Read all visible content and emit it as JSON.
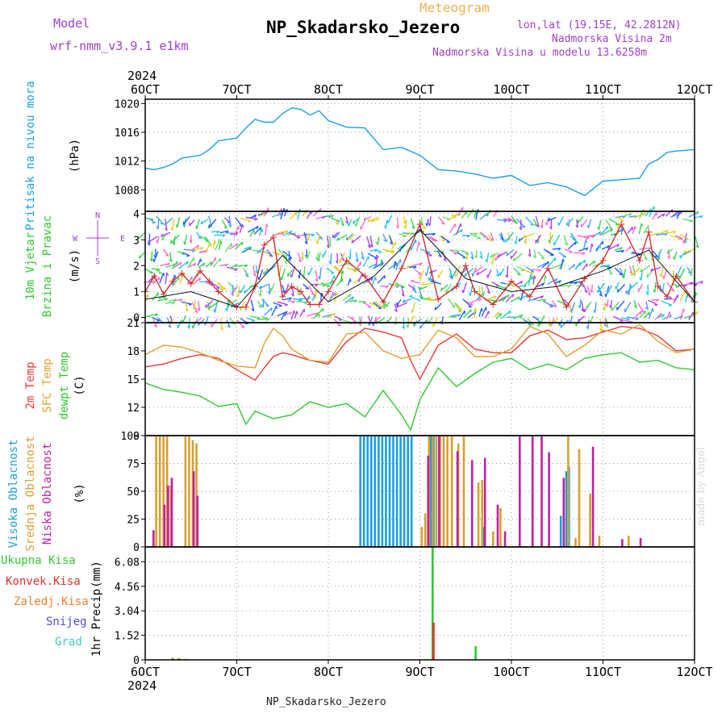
{
  "header": {
    "model_label": "Model",
    "model_name": "wrf-nmm_v3.9.1 e1km",
    "meteogram_label": "Meteogram",
    "station_title": "NP_Skadarsko_Jezero",
    "coords": "lon,lat (19.15E, 42.2812N)",
    "elev_station": "Nadmorska Visina 2m",
    "elev_model": "Nadmorska Visina u modelu 13.6258m"
  },
  "footer": {
    "station_name": "NP_Skadarsko_Jezero",
    "credit": "made by Angel"
  },
  "colors": {
    "pressure": "#1aa0e8",
    "wind_gust": "#d03030",
    "wind_speed": "#111111",
    "temp2m": "#e83a3a",
    "sfc_temp": "#e0a030",
    "dewpoint": "#30c830",
    "cloud_high": "#1a9ee0",
    "cloud_mid": "#d8a030",
    "cloud_low": "#c020a0",
    "precip_total": "#30c830",
    "precip_conv": "#e03030",
    "precip_frozen": "#f08030",
    "precip_snow": "#5050e0",
    "precip_grad": "#40c8c8",
    "label_pressure": "#1aa0e8",
    "label_wind": "#30c830",
    "label_compass": "#a040c8"
  },
  "time_axis": {
    "year_label": "2024",
    "ticks": [
      "6OCT",
      "7OCT",
      "8OCT",
      "9OCT",
      "10OCT",
      "11OCT",
      "12OCT"
    ]
  },
  "chart_data": [
    {
      "type": "line",
      "id": "pressure",
      "ylabel_parts": [
        "Pritisak na nivou mora",
        "(hPa)"
      ],
      "ylim": [
        1005,
        1020.6
      ],
      "yticks": [
        1008,
        1012,
        1016,
        1020
      ],
      "grid": true,
      "series": [
        {
          "x": [
            0,
            0.1,
            0.2,
            0.3,
            0.4,
            0.5,
            0.6,
            0.7,
            0.8,
            1.0,
            1.1,
            1.2,
            1.3,
            1.4,
            1.5,
            1.6,
            1.7,
            1.8,
            1.9,
            2.0,
            2.2,
            2.4,
            2.6,
            2.8,
            3.0,
            3.2,
            3.4,
            3.6,
            3.8,
            4.0,
            4.2,
            4.4,
            4.6,
            4.8,
            5.0,
            5.2,
            5.4,
            5.5,
            5.6,
            5.7,
            5.8,
            6.0
          ],
          "y": [
            1011,
            1010.8,
            1011.1,
            1011.6,
            1012.4,
            1012.6,
            1012.8,
            1013.6,
            1014.8,
            1015.2,
            1016.6,
            1017.8,
            1017.4,
            1017.4,
            1018.6,
            1019.4,
            1019.2,
            1018.4,
            1019,
            1017.6,
            1016.7,
            1016.6,
            1013.6,
            1013.9,
            1012.8,
            1010.8,
            1010.6,
            1010.2,
            1009.6,
            1010,
            1008.6,
            1009,
            1008.4,
            1007.2,
            1009.2,
            1009.4,
            1009.6,
            1011.6,
            1012.2,
            1013.2,
            1013.4,
            1013.6
          ]
        }
      ]
    },
    {
      "type": "line",
      "id": "wind",
      "ylabel_parts": [
        "10m Vjetar",
        "Brzina i Pravac",
        "(m/s)"
      ],
      "compass_labels": [
        "N",
        "E",
        "S",
        "W"
      ],
      "ylim": [
        -0.2,
        4.1
      ],
      "yticks": [
        0,
        1,
        2,
        3,
        4
      ],
      "grid": true,
      "series": [
        {
          "name": "gust",
          "x": [
            0,
            0.1,
            0.2,
            0.3,
            0.4,
            0.5,
            0.6,
            0.7,
            0.8,
            1.0,
            1.1,
            1.2,
            1.3,
            1.4,
            1.5,
            1.6,
            1.7,
            1.8,
            1.9,
            2.0,
            2.2,
            2.4,
            2.6,
            2.8,
            3.0,
            3.2,
            3.4,
            3.5,
            3.6,
            3.8,
            4.0,
            4.2,
            4.4,
            4.6,
            4.8,
            5.0,
            5.2,
            5.4,
            5.5,
            5.6,
            5.7,
            5.8,
            6.0
          ],
          "y": [
            1.0,
            1.6,
            0.9,
            1.4,
            1.7,
            1.3,
            1.8,
            1.4,
            1.0,
            0.4,
            0.4,
            1.2,
            2.8,
            3.1,
            0.8,
            1.2,
            1.0,
            0.5,
            0.5,
            1.0,
            2.2,
            1.6,
            0.6,
            1.9,
            3.6,
            0.7,
            1.2,
            2.0,
            1.0,
            0.5,
            1.4,
            0.8,
            1.9,
            0.4,
            1.5,
            2.2,
            3.6,
            2.2,
            3.3,
            1.2,
            0.8,
            1.6,
            0.6
          ]
        },
        {
          "name": "speed",
          "x": [
            0,
            0.5,
            1.0,
            1.5,
            2.0,
            2.5,
            3.0,
            3.5,
            4.0,
            4.5,
            5.0,
            5.5,
            6.0
          ],
          "y": [
            0.7,
            1.0,
            0.4,
            2.4,
            0.6,
            1.6,
            3.4,
            1.5,
            1.0,
            1.2,
            1.8,
            2.6,
            0.6
          ]
        }
      ]
    },
    {
      "type": "line",
      "id": "temperature",
      "ylabel_parts": [
        "2m Temp",
        "SFC Temp",
        "dewpt Temp",
        "(C)"
      ],
      "ylim": [
        9,
        21
      ],
      "yticks": [
        9,
        12,
        15,
        18,
        21
      ],
      "grid": true,
      "series": [
        {
          "name": "2m Temp",
          "x": [
            0,
            0.2,
            0.4,
            0.6,
            0.8,
            1.0,
            1.2,
            1.3,
            1.4,
            1.5,
            1.6,
            1.8,
            2.0,
            2.2,
            2.4,
            2.6,
            2.8,
            2.9,
            3.0,
            3.2,
            3.4,
            3.6,
            3.8,
            4.0,
            4.2,
            4.4,
            4.6,
            4.8,
            5.0,
            5.2,
            5.4,
            5.6,
            5.8,
            6.0
          ],
          "y": [
            16.3,
            16.6,
            17.2,
            17.6,
            17.2,
            16.0,
            14.9,
            16.2,
            17.4,
            17.8,
            17.6,
            17.0,
            16.6,
            19.0,
            20.4,
            20.0,
            19.4,
            17.0,
            15.0,
            18.6,
            19.8,
            18.2,
            17.8,
            17.8,
            19.6,
            20.2,
            19.2,
            19.4,
            20.0,
            20.6,
            20.4,
            19.6,
            18.0,
            18.2
          ]
        },
        {
          "name": "SFC Temp",
          "x": [
            0,
            0.2,
            0.4,
            0.6,
            0.8,
            1.0,
            1.2,
            1.3,
            1.4,
            1.5,
            1.6,
            1.8,
            2.0,
            2.2,
            2.4,
            2.6,
            2.8,
            2.9,
            3.0,
            3.2,
            3.4,
            3.6,
            3.8,
            4.0,
            4.2,
            4.4,
            4.6,
            4.8,
            5.0,
            5.2,
            5.4,
            5.6,
            5.8,
            6.0
          ],
          "y": [
            17.6,
            18.6,
            18.4,
            17.8,
            17.0,
            16.4,
            16.2,
            18.8,
            20.4,
            19.6,
            18.2,
            17.0,
            16.8,
            19.8,
            20.0,
            18.0,
            17.2,
            17.4,
            17.6,
            20.2,
            19.4,
            17.4,
            17.4,
            18.2,
            20.6,
            19.8,
            17.4,
            18.6,
            20.2,
            19.8,
            20.8,
            19.0,
            17.8,
            18.2
          ]
        },
        {
          "name": "dewpt Temp",
          "x": [
            0,
            0.2,
            0.4,
            0.6,
            0.8,
            1.0,
            1.1,
            1.2,
            1.4,
            1.6,
            1.8,
            2.0,
            2.2,
            2.4,
            2.6,
            2.8,
            2.9,
            3.0,
            3.2,
            3.4,
            3.6,
            3.8,
            4.0,
            4.2,
            4.4,
            4.6,
            4.8,
            5.0,
            5.2,
            5.4,
            5.6,
            5.8,
            6.0
          ],
          "y": [
            14.6,
            13.9,
            13.6,
            13.2,
            12.1,
            12.4,
            10.2,
            11.6,
            10.8,
            11.2,
            12.6,
            12.0,
            12.4,
            11.0,
            13.8,
            11.2,
            9.6,
            12.8,
            16.2,
            14.2,
            15.6,
            16.8,
            17.2,
            16.0,
            16.6,
            16.0,
            17.2,
            17.6,
            17.8,
            16.8,
            17.0,
            16.2,
            16.0
          ]
        }
      ]
    },
    {
      "type": "bar",
      "id": "clouds",
      "ylabel_parts": [
        "Visoka Oblacnost",
        "Srednja Oblacnost",
        "Niska Oblacnost",
        "(%)"
      ],
      "ylim": [
        0,
        100
      ],
      "yticks": [
        0,
        25,
        50,
        75,
        100
      ],
      "grid": true,
      "series": [
        {
          "name": "Visoka Oblacnost",
          "x": [
            2.36,
            2.4,
            2.44,
            2.48,
            2.52,
            2.56,
            2.6,
            2.64,
            2.68,
            2.72,
            2.76,
            2.8,
            2.84,
            2.88,
            2.92,
            3.11,
            3.13,
            3.16,
            3.19,
            3.7,
            4.55,
            4.61,
            4.64
          ],
          "y": [
            100,
            100,
            100,
            100,
            100,
            100,
            100,
            100,
            100,
            100,
            100,
            100,
            100,
            100,
            100,
            78,
            100,
            100,
            100,
            18,
            28,
            68,
            72
          ]
        },
        {
          "name": "Srednja Oblacnost",
          "x": [
            0.12,
            0.16,
            0.2,
            0.24,
            0.28,
            0.44,
            0.48,
            0.52,
            0.56,
            3.02,
            3.06,
            3.1,
            3.14,
            3.18,
            3.22,
            3.26,
            3.3,
            3.35,
            3.42,
            3.48,
            3.64,
            3.68,
            3.8,
            3.88,
            4.62,
            4.7,
            4.74,
            4.86,
            4.96,
            5.28
          ],
          "y": [
            100,
            100,
            100,
            100,
            55,
            100,
            100,
            96,
            93,
            18,
            30,
            100,
            100,
            100,
            100,
            100,
            100,
            100,
            93,
            100,
            58,
            60,
            14,
            35,
            100,
            8,
            88,
            48,
            10,
            10
          ]
        },
        {
          "name": "Niska Oblacnost",
          "x": [
            0.08,
            0.2,
            0.24,
            0.28,
            0.52,
            0.56,
            3.08,
            3.2,
            3.4,
            3.56,
            3.7,
            3.84,
            3.92,
            4.08,
            4.22,
            4.32,
            4.4,
            4.56,
            4.88,
            5.2,
            5.4
          ],
          "y": [
            15,
            38,
            55,
            62,
            68,
            46,
            82,
            100,
            86,
            78,
            80,
            38,
            14,
            100,
            100,
            100,
            85,
            62,
            90,
            7,
            8
          ]
        }
      ]
    },
    {
      "type": "bar",
      "id": "precip",
      "ylabel_parts": [
        "1hr Precip",
        "(mm)"
      ],
      "legend_items": [
        "Ukupna Kisa",
        "Konvek.Kisa",
        "Zaledj.Kisa",
        "Snijeg",
        "Grad"
      ],
      "ylim": [
        0,
        7.0
      ],
      "yticks": [
        0,
        1.52,
        3.04,
        4.56,
        6.08
      ],
      "grid": true,
      "series": [
        {
          "name": "Ukupna Kisa",
          "x": [
            0.32,
            0.4,
            0.48,
            3.16,
            3.63,
            4.0
          ],
          "y": [
            0.12,
            0.08,
            0.05,
            7.0,
            0.85,
            0.06
          ]
        },
        {
          "name": "Konvek.Kisa",
          "x": [
            0.32,
            3.16
          ],
          "y": [
            0.06,
            2.3
          ]
        },
        {
          "name": "Zaledj.Kisa",
          "x": [
            0.36,
            0.44
          ],
          "y": [
            0.1,
            0.06
          ]
        },
        {
          "name": "Snijeg",
          "x": [],
          "y": []
        },
        {
          "name": "Grad",
          "x": [],
          "y": []
        }
      ]
    }
  ]
}
